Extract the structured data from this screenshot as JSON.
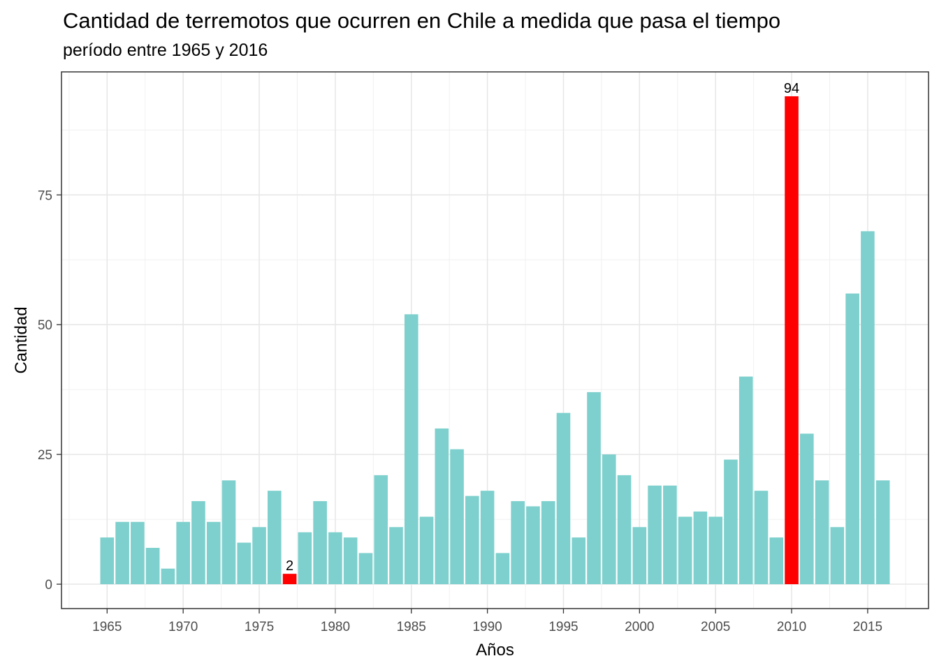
{
  "chart_data": {
    "type": "bar",
    "title": "Cantidad de terremotos que ocurren en Chile a medida que pasa el tiempo",
    "subtitle": "período entre 1965 y 2016",
    "xlabel": "Años",
    "ylabel": "Cantidad",
    "x_ticks": [
      1965,
      1970,
      1975,
      1980,
      1985,
      1990,
      1995,
      2000,
      2005,
      2010,
      2015
    ],
    "y_ticks": [
      0,
      25,
      50,
      75
    ],
    "xlim": [
      1962,
      2019
    ],
    "ylim": [
      -4.7,
      98.7
    ],
    "grid": true,
    "colors": {
      "default": "#7dd0cd",
      "highlight": "#ff0000"
    },
    "x": [
      1965,
      1966,
      1967,
      1968,
      1969,
      1970,
      1971,
      1972,
      1973,
      1974,
      1975,
      1976,
      1977,
      1978,
      1979,
      1980,
      1981,
      1982,
      1983,
      1984,
      1985,
      1986,
      1987,
      1988,
      1989,
      1990,
      1991,
      1992,
      1993,
      1994,
      1995,
      1996,
      1997,
      1998,
      1999,
      2000,
      2001,
      2002,
      2003,
      2004,
      2005,
      2006,
      2007,
      2008,
      2009,
      2010,
      2011,
      2012,
      2013,
      2014,
      2015,
      2016
    ],
    "values": [
      9,
      12,
      12,
      7,
      3,
      12,
      16,
      12,
      20,
      8,
      11,
      18,
      2,
      10,
      16,
      10,
      9,
      6,
      21,
      11,
      52,
      13,
      30,
      26,
      17,
      18,
      6,
      16,
      15,
      16,
      33,
      9,
      37,
      25,
      21,
      11,
      19,
      19,
      13,
      14,
      13,
      24,
      40,
      18,
      9,
      94,
      29,
      20,
      11,
      56,
      68,
      20
    ],
    "highlighted": [
      {
        "x": 1977,
        "value": 2,
        "label": "2"
      },
      {
        "x": 2010,
        "value": 94,
        "label": "94"
      }
    ]
  }
}
